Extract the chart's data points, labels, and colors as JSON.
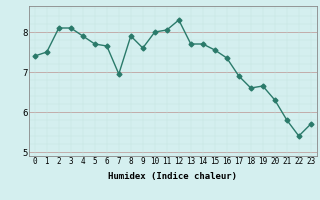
{
  "x": [
    0,
    1,
    2,
    3,
    4,
    5,
    6,
    7,
    8,
    9,
    10,
    11,
    12,
    13,
    14,
    15,
    16,
    17,
    18,
    19,
    20,
    21,
    22,
    23
  ],
  "y": [
    7.4,
    7.5,
    8.1,
    8.1,
    7.9,
    7.7,
    7.65,
    6.95,
    7.9,
    7.6,
    8.0,
    8.05,
    8.3,
    7.7,
    7.7,
    7.55,
    7.35,
    6.9,
    6.6,
    6.65,
    6.3,
    5.8,
    5.4,
    5.7
  ],
  "title": "",
  "xlabel": "Humidex (Indice chaleur)",
  "ylabel": "",
  "ylim": [
    4.9,
    8.65
  ],
  "yticks": [
    5,
    6,
    7,
    8
  ],
  "bg_color": "#d4efef",
  "plot_color": "#2a7a6a",
  "line_width": 1.0,
  "marker_size": 2.5,
  "xlabel_fontsize": 6.5,
  "tick_fontsize": 5.5
}
